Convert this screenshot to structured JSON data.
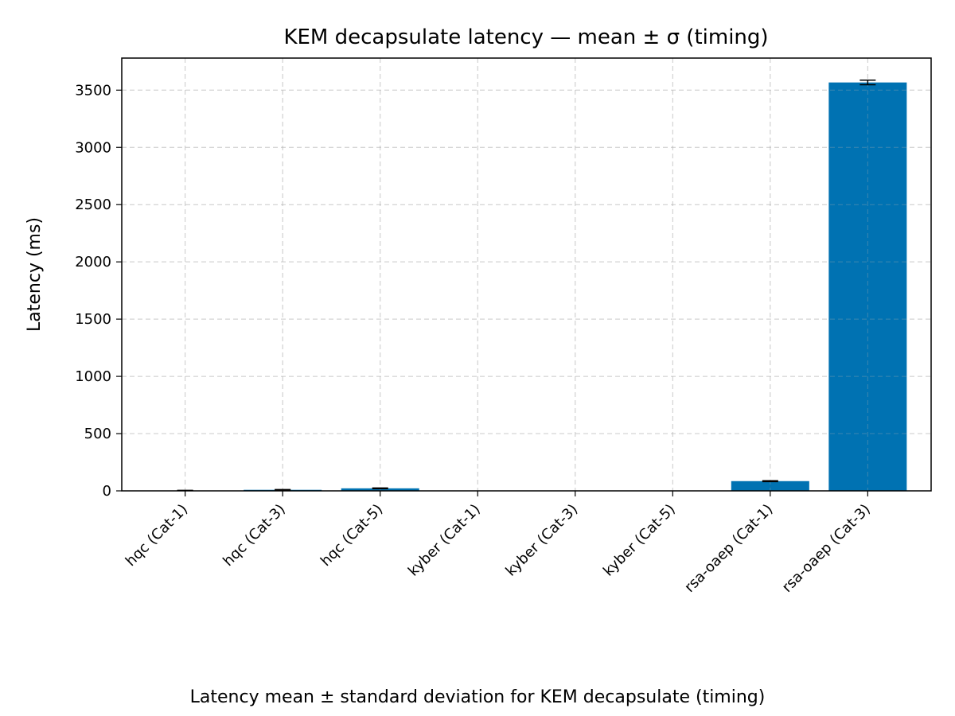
{
  "chart_data": {
    "type": "bar",
    "title": "KEM decapsulate latency — mean ± σ (timing)",
    "xlabel": "",
    "ylabel": "Latency (ms)",
    "categories": [
      "hqc (Cat-1)",
      "hqc (Cat-3)",
      "hqc (Cat-5)",
      "kyber (Cat-1)",
      "kyber (Cat-3)",
      "kyber (Cat-5)",
      "rsa-oaep (Cat-1)",
      "rsa-oaep (Cat-3)"
    ],
    "values": [
      3,
      9,
      22,
      0.1,
      0.1,
      0.1,
      85,
      3567
    ],
    "errors": [
      1,
      2,
      3,
      0,
      0,
      0,
      4,
      20
    ],
    "ylim": [
      0,
      3780
    ],
    "yticks": [
      0,
      500,
      1000,
      1500,
      2000,
      2500,
      3000,
      3500
    ],
    "grid": true,
    "legend": "none",
    "bar_color": "#0072b2"
  },
  "caption": "Latency mean ± standard deviation for KEM decapsulate (timing)"
}
